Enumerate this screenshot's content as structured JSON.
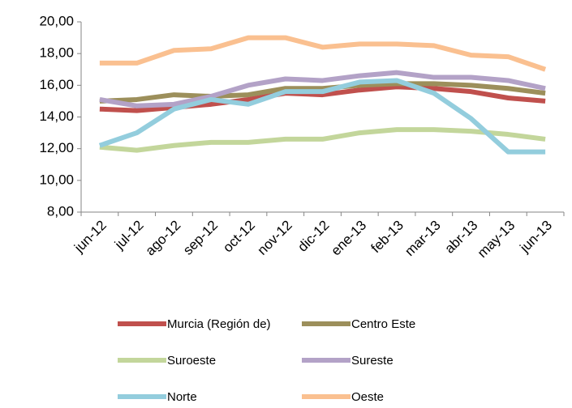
{
  "chart_data": {
    "type": "line",
    "categories": [
      "jun-12",
      "jul-12",
      "ago-12",
      "sep-12",
      "oct-12",
      "nov-12",
      "dic-12",
      "ene-13",
      "feb-13",
      "mar-13",
      "abr-13",
      "may-13",
      "jun-13"
    ],
    "series": [
      {
        "name": "Murcia (Región de)",
        "color": "#c0504d",
        "values": [
          14.5,
          14.4,
          14.6,
          14.8,
          15.1,
          15.5,
          15.4,
          15.7,
          15.9,
          15.8,
          15.6,
          15.2,
          15.0
        ]
      },
      {
        "name": "Centro Este",
        "color": "#9c8f5b",
        "values": [
          15.0,
          15.1,
          15.4,
          15.3,
          15.4,
          15.8,
          15.8,
          16.0,
          16.1,
          16.1,
          16.0,
          15.8,
          15.5
        ]
      },
      {
        "name": "Suroeste",
        "color": "#c3d69b",
        "values": [
          12.1,
          11.9,
          12.2,
          12.4,
          12.4,
          12.6,
          12.6,
          13.0,
          13.2,
          13.2,
          13.1,
          12.9,
          12.6
        ]
      },
      {
        "name": "Sureste",
        "color": "#b3a2c7",
        "values": [
          15.1,
          14.7,
          14.8,
          15.3,
          16.0,
          16.4,
          16.3,
          16.6,
          16.8,
          16.5,
          16.5,
          16.3,
          15.8
        ]
      },
      {
        "name": "Norte",
        "color": "#93cddd",
        "values": [
          12.2,
          13.0,
          14.5,
          15.1,
          14.8,
          15.6,
          15.6,
          16.2,
          16.3,
          15.5,
          13.9,
          11.8,
          11.8
        ]
      },
      {
        "name": "Oeste",
        "color": "#fac090",
        "values": [
          17.4,
          17.4,
          18.2,
          18.3,
          19.0,
          19.0,
          18.4,
          18.6,
          18.6,
          18.5,
          17.9,
          17.8,
          17.0
        ]
      }
    ],
    "ylim": [
      8,
      20
    ],
    "yticks": [
      {
        "value": 8,
        "label": "8,00"
      },
      {
        "value": 10,
        "label": "10,00"
      },
      {
        "value": 12,
        "label": "12,00"
      },
      {
        "value": 14,
        "label": "14,00"
      },
      {
        "value": 16,
        "label": "16,00"
      },
      {
        "value": 18,
        "label": "18,00"
      },
      {
        "value": 20,
        "label": "20,00"
      }
    ],
    "grid": false
  }
}
